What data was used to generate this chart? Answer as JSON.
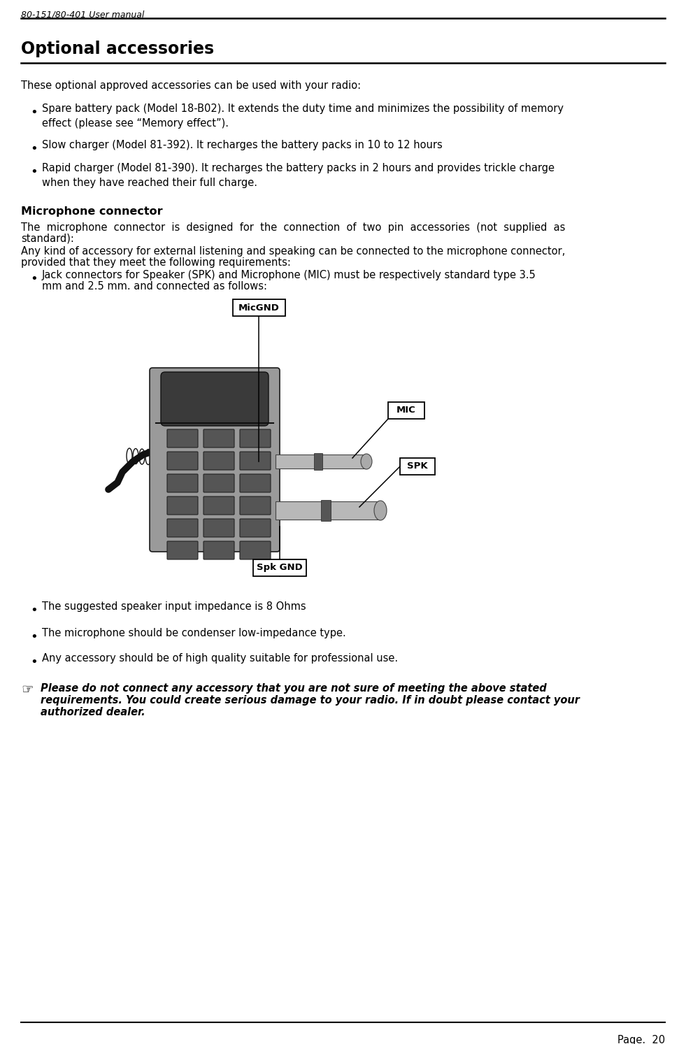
{
  "header_text": "80-151/80-401 User manual",
  "page_title": "Optional accessories",
  "page_num": "Page.  20",
  "body_intro": "These optional approved accessories can be used with your radio:",
  "bullets1": [
    "Spare battery pack (Model 18-B02). It extends the duty time and minimizes the possibility of memory\neffect (please see “Memory effect”).",
    "Slow charger (Model 81-392). It recharges the battery packs in 10 to 12 hours",
    "Rapid charger (Model 81-390). It recharges the battery packs in 2 hours and provides trickle charge\nwhen they have reached their full charge."
  ],
  "section2_title": "Microphone connector",
  "para1_line1": "The  microphone  connector  is  designed  for  the  connection  of  two  pin  accessories  (not  supplied  as",
  "para1_line2": "standard):",
  "para2_line1": "Any kind of accessory for external listening and speaking can be connected to the microphone connector,",
  "para2_line2": "provided that they meet the following requirements:",
  "bullet2_line1": "Jack connectors for Speaker (SPK) and Microphone (MIC) must be respectively standard type 3.5",
  "bullet2_line2": "mm and 2.5 mm. and connected as follows:",
  "bullets3": [
    "The suggested speaker input impedance is 8 Ohms",
    "The microphone should be condenser low-impedance type.",
    "Any accessory should be of high quality suitable for professional use."
  ],
  "warning_line1": "Please do not connect any accessory that you are not sure of meeting the above stated",
  "warning_line2": "requirements. You could create serious damage to your radio. If in doubt please contact your",
  "warning_line3": "authorized dealer.",
  "bg_color": "#ffffff",
  "text_color": "#000000",
  "header_fontsize": 9,
  "title_fontsize": 17,
  "body_fontsize": 10.5,
  "section_title_fontsize": 11.5
}
